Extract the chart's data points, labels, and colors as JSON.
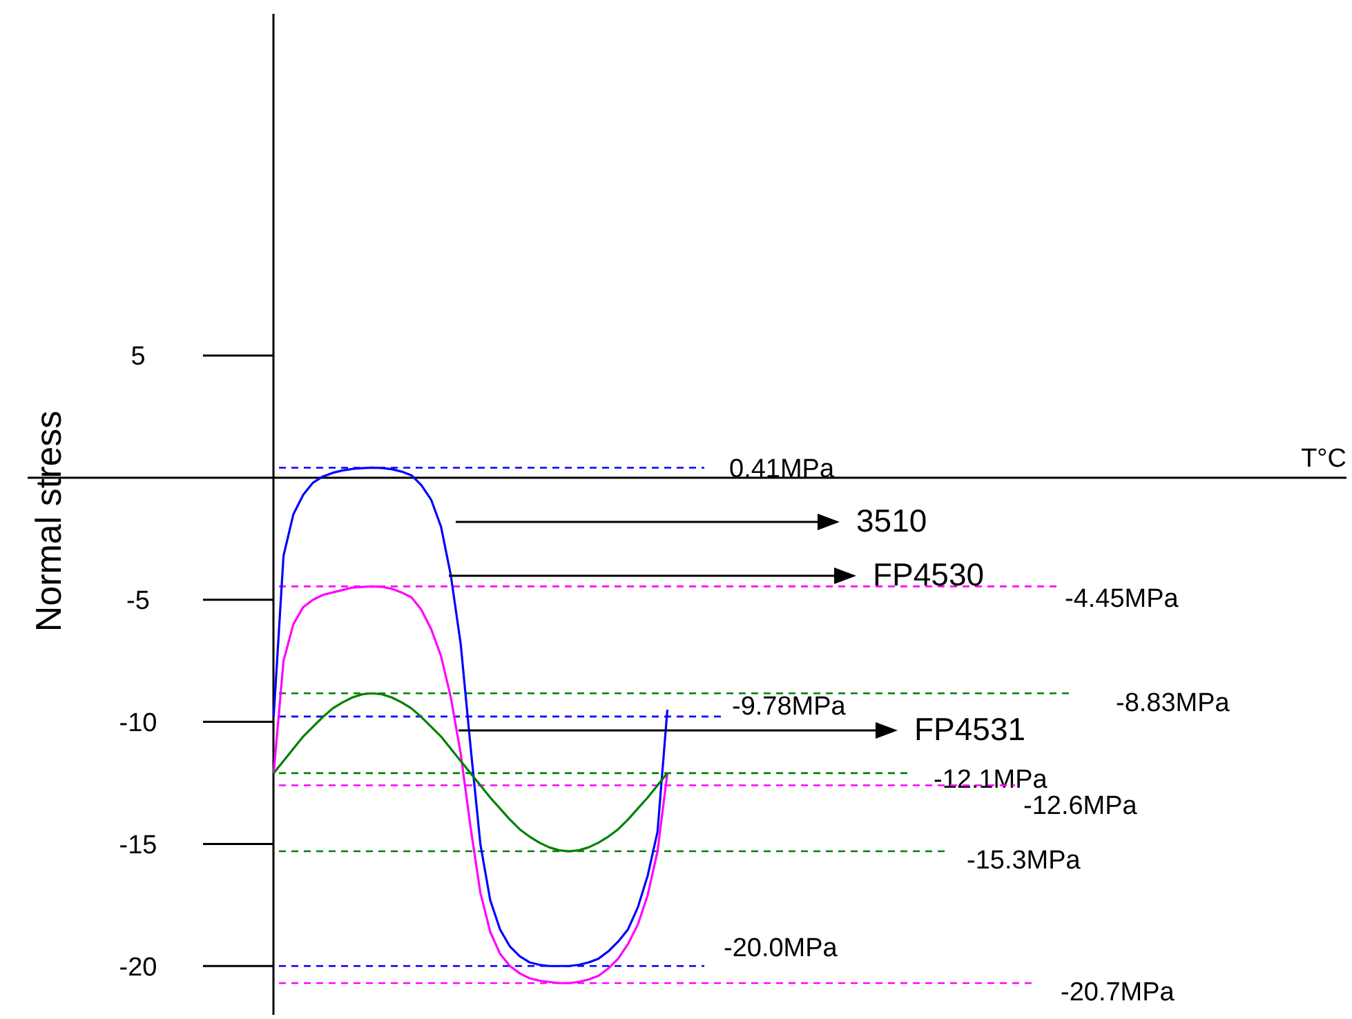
{
  "chart_data": {
    "type": "line",
    "xlabel": "T°C",
    "ylabel": "Normal stress",
    "ylim": [
      -22,
      19
    ],
    "yticks": [
      5,
      -5,
      -10,
      -15,
      -20
    ],
    "tick_labels": "y",
    "grid": false,
    "categories": [
      null,
      null,
      null,
      null,
      null,
      null,
      null,
      null,
      null,
      null,
      null,
      null,
      null,
      null,
      null,
      null,
      null,
      null,
      null,
      null,
      null,
      null,
      null,
      null,
      null,
      null,
      null,
      null,
      null,
      null,
      null,
      null,
      null,
      null,
      null,
      null,
      null,
      null,
      null,
      null,
      null,
      null,
      null,
      null,
      null,
      null,
      null,
      null,
      null,
      null,
      null,
      null,
      null,
      null,
      null,
      null,
      null,
      null,
      null,
      null,
      null,
      null,
      null,
      null,
      null,
      null,
      null,
      null,
      null,
      null,
      null,
      null,
      null,
      null,
      null,
      null,
      null,
      null,
      null,
      null,
      null,
      null,
      null,
      null,
      null,
      null,
      null,
      null,
      null,
      null,
      null,
      null,
      null,
      null,
      null,
      null,
      null,
      null,
      null,
      null,
      null,
      null,
      null,
      null,
      null,
      null,
      null,
      null,
      null,
      null,
      null,
      null,
      null,
      null,
      null,
      null,
      null,
      null,
      null,
      null,
      null,
      null,
      null,
      null,
      null,
      null,
      null,
      null,
      null,
      null,
      null,
      null,
      null,
      null,
      null
    ],
    "series": [
      {
        "color": "#0000ff",
        "values": [
          null,
          null,
          null,
          null,
          null,
          null,
          null,
          null,
          null,
          null,
          null,
          null,
          null,
          null,
          null,
          null,
          null,
          null,
          null,
          null,
          null,
          null,
          null,
          null,
          null,
          -9.78,
          -3.2,
          -1.5,
          -0.7,
          -0.2,
          0.05,
          0.2,
          0.3,
          0.36,
          0.39,
          0.41,
          0.4,
          0.35,
          0.25,
          0.1,
          -0.3,
          -0.9,
          -2,
          -4,
          -6.8,
          -11,
          -15,
          -17.3,
          -18.5,
          -19.2,
          -19.6,
          -19.85,
          -19.95,
          -20.0,
          -20.0,
          -20.0,
          -19.95,
          -19.85,
          -19.7,
          -19.4,
          -19,
          -18.5,
          -17.6,
          -16.3,
          -14.5,
          -9.5,
          null,
          null,
          null,
          null,
          null,
          null,
          null,
          null,
          null,
          null,
          null,
          null,
          null,
          null,
          null,
          null,
          null,
          null,
          null,
          null,
          null,
          null,
          null,
          null,
          null,
          null,
          null,
          null,
          null,
          null,
          null,
          null,
          null,
          null,
          null,
          null,
          null,
          null,
          null,
          null,
          null,
          null,
          null,
          null,
          null,
          null,
          null,
          null,
          null,
          null,
          null,
          null,
          null,
          null,
          null,
          null,
          null,
          null,
          null,
          null,
          null,
          null,
          null,
          null,
          null,
          null,
          null,
          null,
          null
        ]
      },
      {
        "color": "#ff00ff",
        "values": [
          null,
          null,
          null,
          null,
          null,
          null,
          null,
          null,
          null,
          null,
          null,
          null,
          null,
          null,
          null,
          null,
          null,
          null,
          null,
          null,
          null,
          null,
          null,
          null,
          null,
          -12.1,
          -7.5,
          -6,
          -5.3,
          -5,
          -4.8,
          -4.7,
          -4.6,
          -4.5,
          -4.47,
          -4.45,
          -4.47,
          -4.55,
          -4.7,
          -4.9,
          -5.4,
          -6.2,
          -7.3,
          -9,
          -11.3,
          -14.3,
          -17,
          -18.6,
          -19.5,
          -20,
          -20.3,
          -20.5,
          -20.6,
          -20.65,
          -20.7,
          -20.7,
          -20.65,
          -20.55,
          -20.4,
          -20.1,
          -19.7,
          -19.1,
          -18.3,
          -17.1,
          -15.3,
          -12.1,
          null,
          null,
          null,
          null,
          null,
          null,
          null,
          null,
          null,
          null,
          null,
          null,
          null,
          null,
          null,
          null,
          null,
          null,
          null,
          null,
          null,
          null,
          null,
          null,
          null,
          null,
          null,
          null,
          null,
          null,
          null,
          null,
          null,
          null,
          null,
          null,
          null,
          null,
          null,
          null,
          null,
          null,
          null,
          null,
          null,
          null,
          null,
          null,
          null,
          null,
          null,
          null,
          null,
          null,
          null,
          null,
          null,
          null,
          null,
          null,
          null,
          null,
          null,
          null,
          null,
          null,
          null,
          null,
          null
        ]
      },
      {
        "color": "#008000",
        "values": [
          null,
          null,
          null,
          null,
          null,
          null,
          null,
          null,
          null,
          null,
          null,
          null,
          null,
          null,
          null,
          null,
          null,
          null,
          null,
          null,
          null,
          null,
          null,
          null,
          null,
          -12.1,
          -11.6,
          -11.1,
          -10.6,
          -10.2,
          -9.8,
          -9.45,
          -9.2,
          -9.0,
          -8.87,
          -8.83,
          -8.87,
          -9.0,
          -9.2,
          -9.45,
          -9.8,
          -10.2,
          -10.6,
          -11.1,
          -11.6,
          -12.1,
          -12.6,
          -13.1,
          -13.55,
          -14.0,
          -14.4,
          -14.7,
          -14.95,
          -15.14,
          -15.26,
          -15.3,
          -15.26,
          -15.14,
          -14.95,
          -14.7,
          -14.4,
          -14.0,
          -13.55,
          -13.1,
          -12.6,
          -12.1,
          null,
          null,
          null,
          null,
          null,
          null,
          null,
          null,
          null,
          null,
          null,
          null,
          null,
          null,
          null,
          null,
          null,
          null,
          null,
          null,
          null,
          null,
          null,
          null,
          null,
          null,
          null,
          null,
          null,
          null,
          null,
          null,
          null,
          null,
          null,
          null,
          null,
          null,
          null,
          null,
          null,
          null,
          null,
          null,
          null,
          null,
          null,
          null,
          null,
          null,
          null,
          null,
          null,
          null,
          null,
          null,
          null,
          null,
          null,
          null,
          null,
          null,
          null,
          null,
          null,
          null,
          null,
          null,
          null
        ]
      }
    ],
    "annotations": [
      "3510",
      "FP4530",
      "FP4531"
    ],
    "ref_lines": [
      {
        "axis": "y",
        "value": 0.41,
        "label": "0.41MPa",
        "color": "#0000ff",
        "line_style": "dashed"
      },
      {
        "axis": "y",
        "value": -4.45,
        "label": "-4.45MPa",
        "color": "#ff00ff",
        "line_style": "dashed"
      },
      {
        "axis": "y",
        "value": -8.83,
        "label": "-8.83MPa",
        "color": "#008000",
        "line_style": "dashed"
      },
      {
        "axis": "y",
        "value": -9.78,
        "label": "-9.78MPa",
        "color": "#0000ff",
        "line_style": "dashed"
      },
      {
        "axis": "y",
        "value": -12.1,
        "label": "-12.1MPa",
        "color": "#008000",
        "line_style": "dashed"
      },
      {
        "axis": "y",
        "value": -12.6,
        "label": "-12.6MPa",
        "color": "#ff00ff",
        "line_style": "dashed"
      },
      {
        "axis": "y",
        "value": -15.3,
        "label": "-15.3MPa",
        "color": "#008000",
        "line_style": "dashed"
      },
      {
        "axis": "y",
        "value": -20.0,
        "label": "-20.0MPa",
        "color": "#0000ff",
        "line_style": "dashed"
      },
      {
        "axis": "y",
        "value": -20.7,
        "label": "-20.7MPa",
        "color": "#ff00ff",
        "line_style": "dashed"
      }
    ]
  }
}
